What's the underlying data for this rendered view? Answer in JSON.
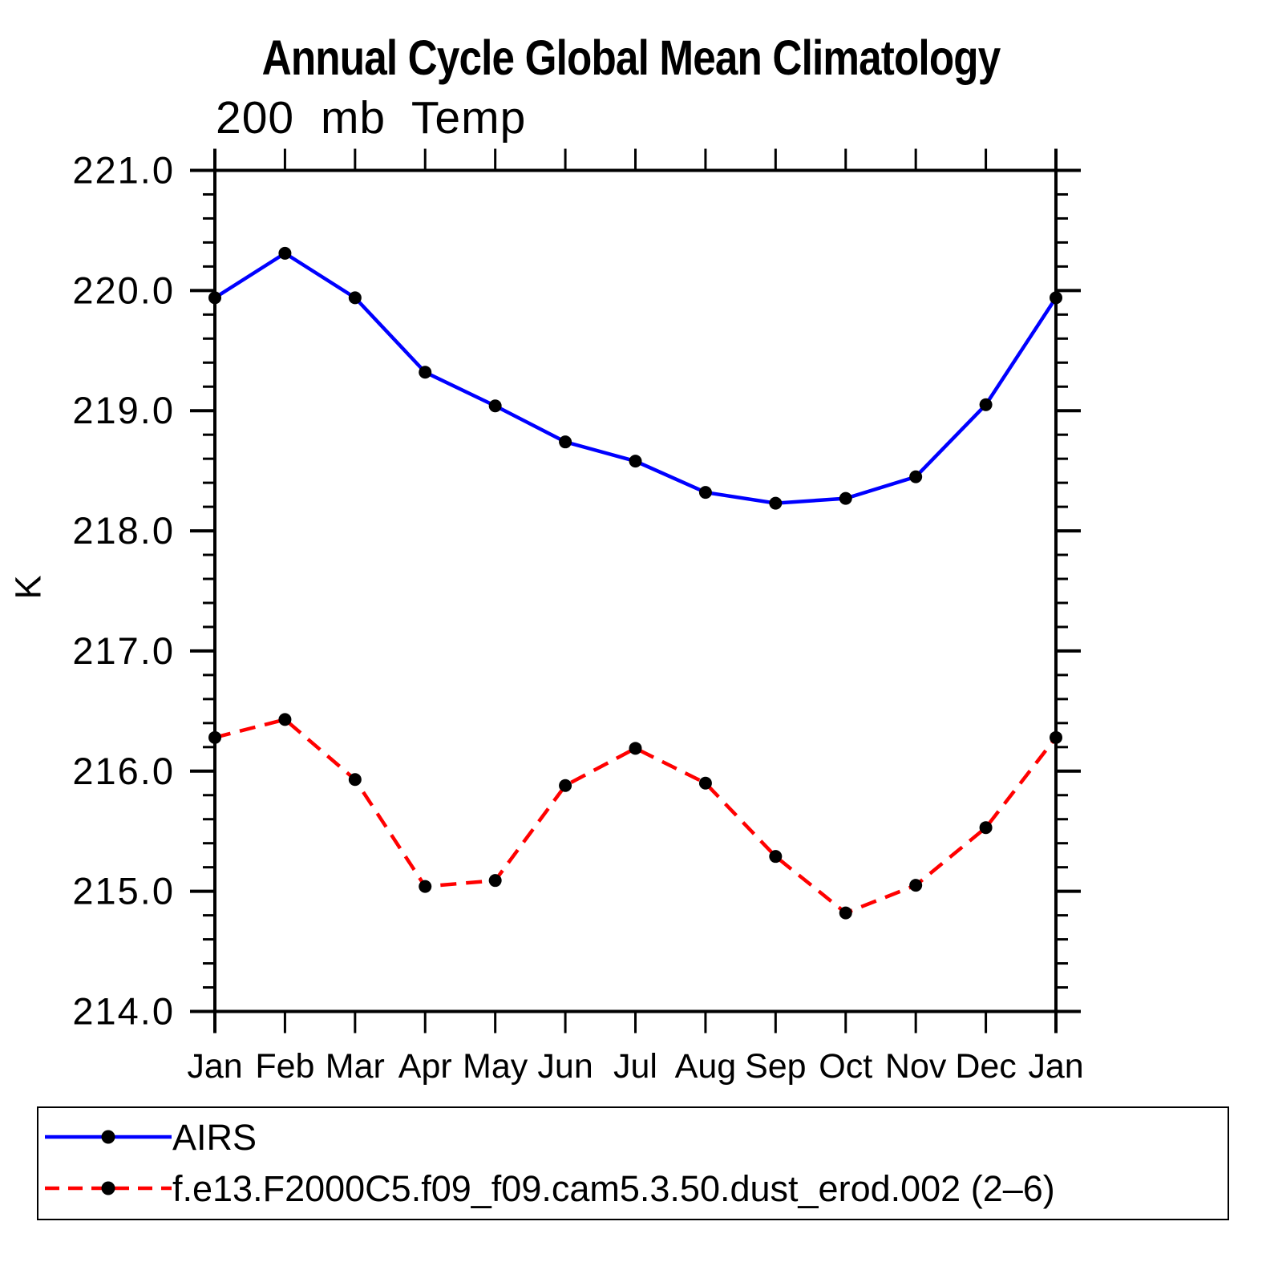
{
  "page": {
    "background": "#ffffff",
    "text_color": "#000000",
    "axis_color": "#000000",
    "legend_border_color": "#000000"
  },
  "chart_data": {
    "type": "line",
    "title": "Annual Cycle Global Mean Climatology",
    "subtitle": "200 mb Temp",
    "ylabel": "K",
    "xlabel": "",
    "categories": [
      "Jan",
      "Feb",
      "Mar",
      "Apr",
      "May",
      "Jun",
      "Jul",
      "Aug",
      "Sep",
      "Oct",
      "Nov",
      "Dec",
      "Jan"
    ],
    "ylim": [
      214.0,
      221.0
    ],
    "ytick_interval": 1.0,
    "minor_tick_interval": 0.2,
    "ytick_labels": [
      "221.0",
      "220.0",
      "219.0",
      "218.0",
      "217.0",
      "216.0",
      "215.0",
      "214.0"
    ],
    "grid": false,
    "legend_position": "bottom",
    "series": [
      {
        "name": "AIRS",
        "color": "#0000ff",
        "style": "solid",
        "marker": "filled-circle",
        "marker_color": "#000000",
        "values": [
          219.94,
          220.31,
          219.94,
          219.32,
          219.04,
          218.74,
          218.58,
          218.32,
          218.23,
          218.27,
          218.45,
          219.05,
          219.94
        ]
      },
      {
        "name": "f.e13.F2000C5.f09_f09.cam5.3.50.dust_erod.002 (2–6)",
        "color": "#ff0000",
        "style": "dashed",
        "marker": "filled-circle",
        "marker_color": "#000000",
        "values": [
          216.28,
          216.43,
          215.93,
          215.04,
          215.09,
          215.88,
          216.19,
          215.9,
          215.29,
          214.82,
          215.05,
          215.53,
          216.28
        ]
      }
    ]
  }
}
